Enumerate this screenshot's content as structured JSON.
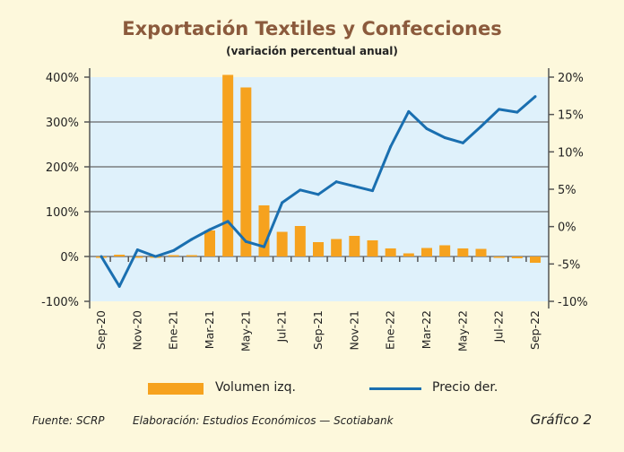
{
  "chart_data": {
    "type": "bar+line",
    "title": "Exportación Textiles y Confecciones",
    "subtitle": "(variación percentual anual)",
    "categories": [
      "Sep-20",
      "Oct-20",
      "Nov-20",
      "Dic-20",
      "Ene-21",
      "Feb-21",
      "Mar-21",
      "Abr-21",
      "May-21",
      "Jun-21",
      "Jul-21",
      "Ago-21",
      "Sep-21",
      "Oct-21",
      "Nov-21",
      "Dic-21",
      "Ene-22",
      "Feb-22",
      "Mar-22",
      "Abr-22",
      "May-22",
      "Jun-22",
      "Jul-22",
      "Ago-22",
      "Sep-22"
    ],
    "x_tick_labels": [
      "Sep-20",
      "Nov-20",
      "Ene-21",
      "Mar-21",
      "May-21",
      "Jul-21",
      "Sep-21",
      "Nov-21",
      "Ene-22",
      "Mar-22",
      "May-22",
      "Jul-22",
      "Sep-22"
    ],
    "series": [
      {
        "name": "Volumen izq.",
        "type": "bar",
        "axis": "left",
        "color": "#f6a21e",
        "values": [
          0,
          4,
          -3,
          0,
          3,
          3,
          58,
          405,
          377,
          114,
          55,
          68,
          32,
          39,
          46,
          36,
          18,
          7,
          19,
          25,
          18,
          17,
          -2,
          -4,
          -14
        ]
      },
      {
        "name": "Precio der.",
        "type": "line",
        "axis": "right",
        "color": "#1a6fb0",
        "values": [
          -4.0,
          -8.0,
          -3.1,
          -4.0,
          -3.2,
          -1.7,
          -0.4,
          0.7,
          -2.0,
          -2.7,
          3.2,
          4.9,
          4.3,
          6.0,
          5.4,
          4.8,
          10.7,
          15.4,
          13.1,
          11.9,
          11.2,
          13.4,
          15.7,
          15.3,
          17.4
        ]
      }
    ],
    "left_axis": {
      "ylim": [
        -100,
        400
      ],
      "ticks": [
        "-100%",
        "0%",
        "100%",
        "200%",
        "300%",
        "400%"
      ]
    },
    "right_axis": {
      "ylim": [
        -10,
        20
      ],
      "ticks": [
        "-10%",
        "-5%",
        "0%",
        "5%",
        "10%",
        "15%",
        "20%"
      ]
    },
    "grid": true,
    "legend_placement": "bottom"
  },
  "footer": {
    "source": "Fuente: SCRP",
    "credit": "Elaboración: Estudios Económicos — Scotiabank",
    "label": "Gráfico 2"
  },
  "colors": {
    "background": "#fdf8dc",
    "plot": "#dff1fb",
    "title": "#8b5a3c"
  }
}
